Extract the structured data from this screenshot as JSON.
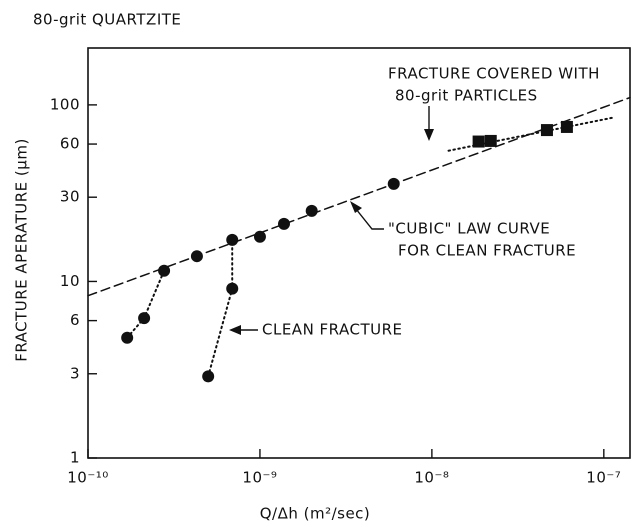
{
  "chart_data": {
    "type": "scatter",
    "title": "80-grit QUARTZITE",
    "x_label": "Q/Δh (m²/sec)",
    "y_label": "FRACTURE APERATURE (μm)",
    "log_x": true,
    "log_y": true,
    "xlim": [
      1e-10,
      1.42e-07
    ],
    "ylim": [
      1,
      210
    ],
    "xticks": [
      {
        "value": 1e-10,
        "label": "10⁻¹⁰"
      },
      {
        "value": 1e-09,
        "label": "10⁻⁹"
      },
      {
        "value": 1e-08,
        "label": "10⁻⁸"
      },
      {
        "value": 1e-07,
        "label": "10⁻⁷"
      }
    ],
    "yticks": [
      1,
      3,
      6,
      10,
      30,
      60,
      100
    ],
    "series": [
      {
        "marker": "circle",
        "color": "#111111",
        "x": [
          1.69e-10,
          2.12e-10,
          2.77e-10,
          4.3e-10,
          6.9e-10,
          1e-09,
          1.38e-09,
          2e-09,
          6e-09,
          5e-10,
          6.9e-10
        ],
        "values": [
          4.8,
          6.2,
          11.5,
          13.9,
          17.2,
          17.9,
          21.2,
          25.1,
          35.7,
          2.9,
          9.1
        ]
      },
      {
        "marker": "square",
        "color": "#111111",
        "x": [
          1.87e-08,
          2.2e-08,
          4.67e-08,
          6.1e-08
        ],
        "values": [
          62,
          62.5,
          72,
          75
        ]
      },
      {
        "line": "dashed",
        "color": "#111111",
        "x": [
          1e-10,
          1.42e-07
        ],
        "values": [
          8.3,
          110
        ]
      },
      {
        "line": "dotted",
        "color": "#111111",
        "x": [
          1.69e-10,
          2.12e-10,
          2.77e-10
        ],
        "values": [
          4.8,
          6.2,
          11.5
        ]
      },
      {
        "line": "dotted",
        "color": "#111111",
        "x": [
          5e-10,
          6.9e-10,
          6.9e-10
        ],
        "values": [
          2.9,
          9.1,
          17.2
        ]
      },
      {
        "line": "dotted",
        "color": "#111111",
        "x": [
          1.25e-08,
          1.15e-07
        ],
        "values": [
          55,
          85
        ]
      }
    ],
    "annotations": [
      "FRACTURE COVERED WITH",
      "80-grit PARTICLES",
      "\"CUBIC\" LAW CURVE",
      "FOR CLEAN FRACTURE",
      "CLEAN FRACTURE"
    ]
  }
}
